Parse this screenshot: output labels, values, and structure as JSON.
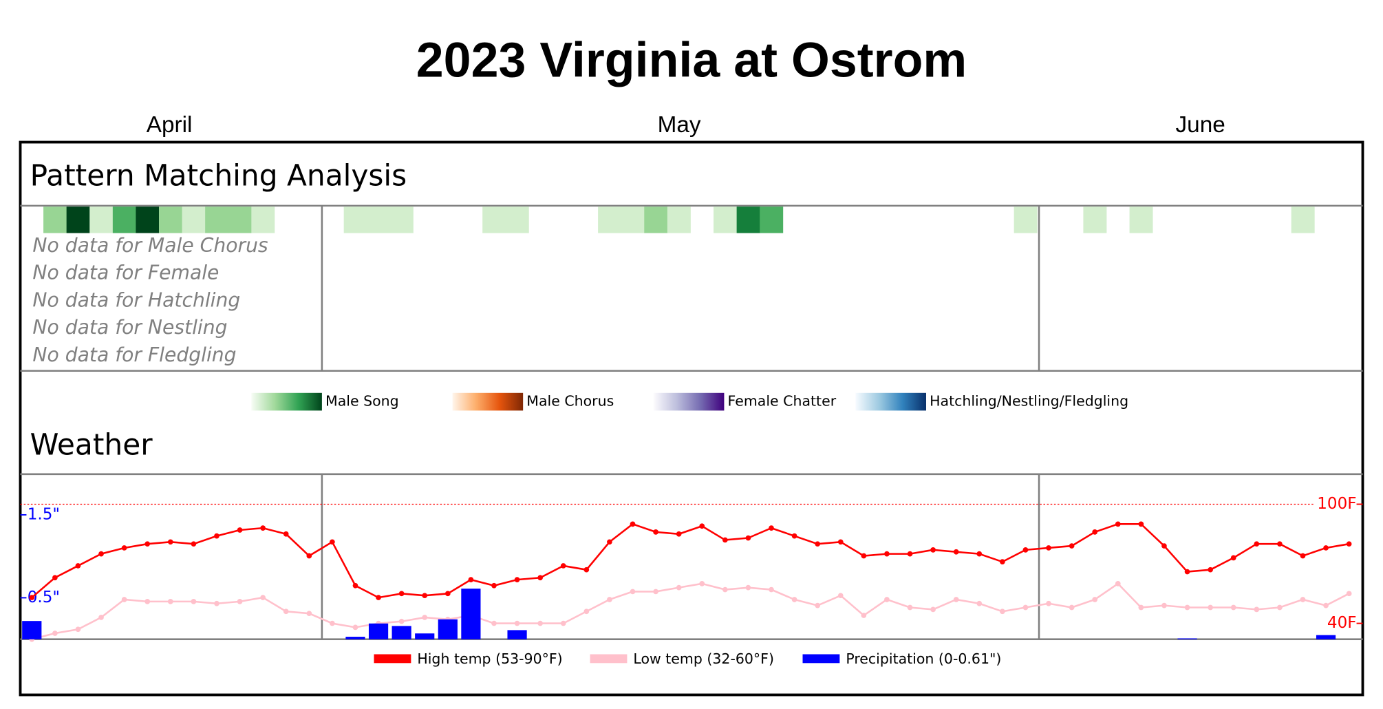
{
  "title": "2023 Virginia at Ostrom",
  "months": [
    "April",
    "May",
    "June"
  ],
  "pattern": {
    "title": "Pattern Matching Analysis",
    "male_song": [
      null,
      2,
      5,
      1,
      3,
      5,
      2,
      1,
      2,
      2,
      1,
      null,
      null,
      null,
      1,
      1,
      1,
      null,
      null,
      null,
      1,
      1,
      null,
      null,
      null,
      1,
      1,
      2,
      1,
      null,
      1,
      4,
      3,
      null,
      null,
      null,
      null,
      null,
      null,
      null,
      null,
      null,
      null,
      1,
      null,
      null,
      1,
      null,
      1,
      null,
      null,
      null,
      null,
      null,
      null,
      1,
      null,
      null
    ],
    "male_song_colors": [
      "#d3eecd",
      "#98d594",
      "#4bb062",
      "#157f3b",
      "#00441b"
    ],
    "no_data": [
      "No data for Male Chorus",
      "No data for Female",
      "No data for Hatchling",
      "No data for Nestling",
      "No data for Fledgling"
    ],
    "legend": [
      {
        "name": "Male Song",
        "colors": [
          "#f7fcf5",
          "#a1d99b",
          "#31a354",
          "#00441b"
        ]
      },
      {
        "name": "Male Chorus",
        "colors": [
          "#fff5eb",
          "#fdae6b",
          "#e6550d",
          "#7f2704"
        ]
      },
      {
        "name": "Female Chatter",
        "colors": [
          "#fcfbfd",
          "#bcbddc",
          "#756bb1",
          "#3f007d"
        ]
      },
      {
        "name": "Hatchling/Nestling/Fledgling",
        "colors": [
          "#f7fbff",
          "#9ecae1",
          "#3182bd",
          "#08306b"
        ]
      }
    ]
  },
  "chart_data": {
    "type": "line",
    "title": "Weather",
    "ylim": [
      0,
      1.98
    ],
    "yticks": [
      {
        "value": 1.5,
        "label": "1.5\""
      },
      {
        "value": 0.5,
        "label": "0.5\""
      }
    ],
    "y2lim": [
      32,
      114.7
    ],
    "y2ticks": [
      {
        "value": 100,
        "label": "100F"
      },
      {
        "value": 40,
        "label": "40F"
      }
    ],
    "series": [
      {
        "name": "High temp (53-90°F)",
        "color": "#ff0000",
        "axis": "y2",
        "values": [
          53,
          63,
          69,
          75,
          78,
          80,
          81,
          80,
          84,
          87,
          88,
          85,
          74,
          81,
          59,
          53,
          55,
          54,
          55,
          62,
          59,
          62,
          63,
          69,
          67,
          81,
          90,
          86,
          85,
          89,
          82,
          83,
          88,
          84,
          80,
          81,
          74,
          75,
          75,
          77,
          76,
          75,
          71,
          77,
          78,
          79,
          86,
          90,
          90,
          79,
          66,
          67,
          73,
          80,
          80,
          74,
          78,
          80
        ]
      },
      {
        "name": "Low temp (32-60°F)",
        "color": "#ffc0cb",
        "axis": "y2",
        "values": [
          32,
          35,
          37,
          43,
          52,
          51,
          51,
          51,
          50,
          51,
          53,
          46,
          45,
          40,
          38,
          40,
          41,
          43,
          42,
          44,
          40,
          40,
          40,
          40,
          46,
          52,
          56,
          56,
          58,
          60,
          57,
          58,
          57,
          52,
          49,
          54,
          44,
          52,
          48,
          47,
          52,
          50,
          46,
          48,
          50,
          48,
          52,
          60,
          48,
          49,
          48,
          48,
          48,
          47,
          48,
          52,
          49,
          55
        ]
      },
      {
        "name": "Precipitation (0-0.61\")",
        "color": "#0000ff",
        "type": "bar",
        "values": [
          0.22,
          0,
          0,
          0,
          0,
          0,
          0,
          0,
          0,
          0,
          0,
          0,
          0,
          0,
          0.03,
          0.19,
          0.16,
          0.07,
          0.24,
          0.61,
          0,
          0.11,
          0,
          0,
          0,
          0,
          0,
          0,
          0,
          0,
          0,
          0,
          0,
          0,
          0,
          0,
          0,
          0,
          0,
          0,
          0,
          0,
          0,
          0,
          0,
          0,
          0,
          0,
          0,
          0,
          0.01,
          0,
          0,
          0,
          0,
          0,
          0.05,
          0
        ]
      }
    ]
  }
}
